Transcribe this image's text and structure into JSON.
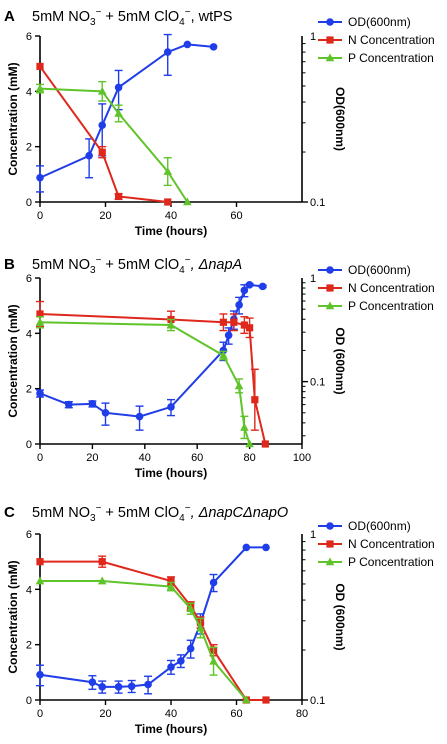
{
  "colors": {
    "od": "#1f3de8",
    "n": "#e0271b",
    "p": "#5fc42a"
  },
  "chart_data": [
    {
      "type": "line",
      "panel_letter": "A",
      "title_prefix": "5mM NO",
      "title_mid": " + 5mM ClO",
      "title_suffix": ", wtPS",
      "title_suffix_italic": false,
      "xlabel": "Time (hours)",
      "ylabel": "Concentration (mM)",
      "y2label": "OD(600nm)",
      "xlim": [
        0,
        80
      ],
      "xticks": [
        0,
        20,
        40,
        60
      ],
      "ylim": [
        0,
        6
      ],
      "yticks": [
        0,
        2,
        4,
        6
      ],
      "y2lim": [
        0.1,
        1
      ],
      "y2scale": "log",
      "y2ticks": [
        0.1,
        1
      ],
      "y2ticklabels": [
        "0.1",
        "1"
      ],
      "legend_position": "top-right",
      "series": [
        {
          "name": "OD(600nm)",
          "axis": "right",
          "marker": "circle",
          "color": "#1f3de8",
          "x": [
            0,
            15,
            19,
            24,
            39,
            45,
            53
          ],
          "y": [
            0.14,
            0.19,
            0.29,
            0.49,
            0.8,
            0.89,
            0.86
          ],
          "err": [
            0.025,
            0.05,
            0.1,
            0.13,
            0.22,
            0,
            0
          ]
        },
        {
          "name": "N Concentration",
          "axis": "left",
          "marker": "square",
          "color": "#e0271b",
          "x": [
            0,
            19,
            24,
            39
          ],
          "y": [
            4.9,
            1.8,
            0.2,
            0.0
          ],
          "err": [
            0,
            0.2,
            0.1,
            0
          ]
        },
        {
          "name": "P Concentration",
          "axis": "left",
          "marker": "triangle",
          "color": "#5fc42a",
          "x": [
            0,
            19,
            24,
            39,
            45
          ],
          "y": [
            4.1,
            4.0,
            3.2,
            1.1,
            0.0
          ],
          "err": [
            0.15,
            0.35,
            0.3,
            0.5,
            0
          ]
        }
      ]
    },
    {
      "type": "line",
      "panel_letter": "B",
      "title_prefix": "5mM NO",
      "title_mid": " + 5mM ClO",
      "title_suffix": ", ΔnapA",
      "title_suffix_italic": true,
      "xlabel": "Time (hours)",
      "ylabel": "Concentration (mM)",
      "y2label": "OD (600nm)",
      "xlim": [
        0,
        100
      ],
      "xticks": [
        0,
        20,
        40,
        60,
        80,
        100
      ],
      "ylim": [
        0,
        6
      ],
      "yticks": [
        0,
        2,
        4,
        6
      ],
      "y2lim": [
        0.025,
        1
      ],
      "y2scale": "log",
      "y2ticks": [
        0.1,
        1
      ],
      "y2ticklabels": [
        "0.1",
        "1"
      ],
      "legend_position": "top-right",
      "series": [
        {
          "name": "OD(600nm)",
          "axis": "right",
          "marker": "circle",
          "color": "#1f3de8",
          "x": [
            0,
            11,
            20,
            25,
            38,
            50,
            70,
            72,
            74,
            76,
            78,
            80,
            85
          ],
          "y": [
            0.077,
            0.06,
            0.061,
            0.05,
            0.046,
            0.057,
            0.2,
            0.28,
            0.4,
            0.55,
            0.76,
            0.86,
            0.83
          ],
          "err": [
            0.006,
            0.004,
            0.004,
            0.012,
            0.012,
            0.01,
            0.04,
            0.05,
            0.08,
            0.1,
            0.1,
            0.02,
            0.02
          ]
        },
        {
          "name": "N Concentration",
          "axis": "left",
          "marker": "square",
          "color": "#e0271b",
          "x": [
            0,
            50,
            70,
            74,
            78,
            80,
            82,
            86
          ],
          "y": [
            4.7,
            4.5,
            4.4,
            4.4,
            4.3,
            4.2,
            1.6,
            0.0
          ],
          "err": [
            0.45,
            0.3,
            0.3,
            0.3,
            0.3,
            0.35,
            1.1,
            0
          ]
        },
        {
          "name": "P Concentration",
          "axis": "left",
          "marker": "triangle",
          "color": "#5fc42a",
          "x": [
            0,
            50,
            70,
            76,
            78,
            80
          ],
          "y": [
            4.4,
            4.3,
            3.2,
            2.1,
            0.6,
            0.0
          ],
          "err": [
            0.2,
            0.2,
            0.15,
            0.25,
            0.4,
            0
          ]
        }
      ]
    },
    {
      "type": "line",
      "panel_letter": "C",
      "title_prefix": "5mM NO",
      "title_mid": " + 5mM ClO",
      "title_suffix": ", ΔnapCΔnapO",
      "title_suffix_italic": true,
      "xlabel": "Time (hours)",
      "ylabel": "Concentration (mM)",
      "y2label": "OD (600nm)",
      "xlim": [
        0,
        80
      ],
      "xticks": [
        0,
        20,
        40,
        60,
        80
      ],
      "ylim": [
        0,
        6
      ],
      "yticks": [
        0,
        2,
        4,
        6
      ],
      "y2lim": [
        0.1,
        1
      ],
      "y2scale": "log",
      "y2ticks": [
        0.1,
        1
      ],
      "y2ticklabels": [
        "0.1",
        "1"
      ],
      "legend_position": "top-right",
      "series": [
        {
          "name": "OD(600nm)",
          "axis": "right",
          "marker": "circle",
          "color": "#1f3de8",
          "x": [
            0,
            16,
            19,
            24,
            28,
            33,
            40,
            43,
            46,
            49,
            53,
            63,
            69
          ],
          "y": [
            0.142,
            0.128,
            0.12,
            0.12,
            0.121,
            0.124,
            0.158,
            0.172,
            0.204,
            0.29,
            0.51,
            0.83,
            0.83
          ],
          "err": [
            0.02,
            0.012,
            0.01,
            0.01,
            0.01,
            0.015,
            0.015,
            0.015,
            0.025,
            0.04,
            0.06,
            0,
            0
          ]
        },
        {
          "name": "N Concentration",
          "axis": "left",
          "marker": "square",
          "color": "#e0271b",
          "x": [
            0,
            19,
            40,
            46,
            49,
            53,
            63,
            69
          ],
          "y": [
            5.0,
            5.0,
            4.3,
            3.4,
            2.8,
            1.8,
            0.0,
            0.0
          ],
          "err": [
            0,
            0.2,
            0.15,
            0.15,
            0.2,
            0.2,
            0,
            0
          ]
        },
        {
          "name": "P Concentration",
          "axis": "left",
          "marker": "triangle",
          "color": "#5fc42a",
          "x": [
            0,
            19,
            40,
            46,
            49,
            53,
            63
          ],
          "y": [
            4.3,
            4.3,
            4.1,
            3.3,
            2.6,
            1.4,
            0.0
          ],
          "err": [
            0,
            0,
            0.15,
            0.2,
            0.35,
            0.5,
            0
          ]
        }
      ]
    }
  ]
}
